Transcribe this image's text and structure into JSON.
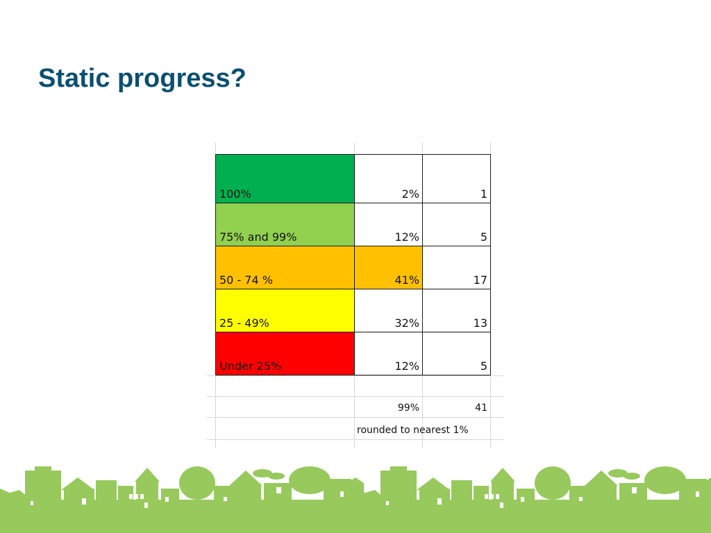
{
  "title": "Static progress?",
  "table": {
    "rows": [
      {
        "label": "100%",
        "percent": "2%",
        "count": "1",
        "label_color": "#00b050",
        "percent_color": "#ffffff"
      },
      {
        "label": "75% and 99%",
        "percent": "12%",
        "count": "5",
        "label_color": "#92d050",
        "percent_color": "#ffffff"
      },
      {
        "label": "50 - 74 %",
        "percent": "41%",
        "count": "17",
        "label_color": "#ffc000",
        "percent_color": "#ffc000"
      },
      {
        "label": "25 - 49%",
        "percent": "32%",
        "count": "13",
        "label_color": "#ffff00",
        "percent_color": "#ffffff"
      },
      {
        "label": "Under 25%",
        "percent": "12%",
        "count": "5",
        "label_color": "#ff0000",
        "percent_color": "#ffffff"
      }
    ],
    "total_percent": "99%",
    "total_count": "41",
    "note": "rounded to nearest 1%"
  },
  "banner_color": "#97c95c"
}
